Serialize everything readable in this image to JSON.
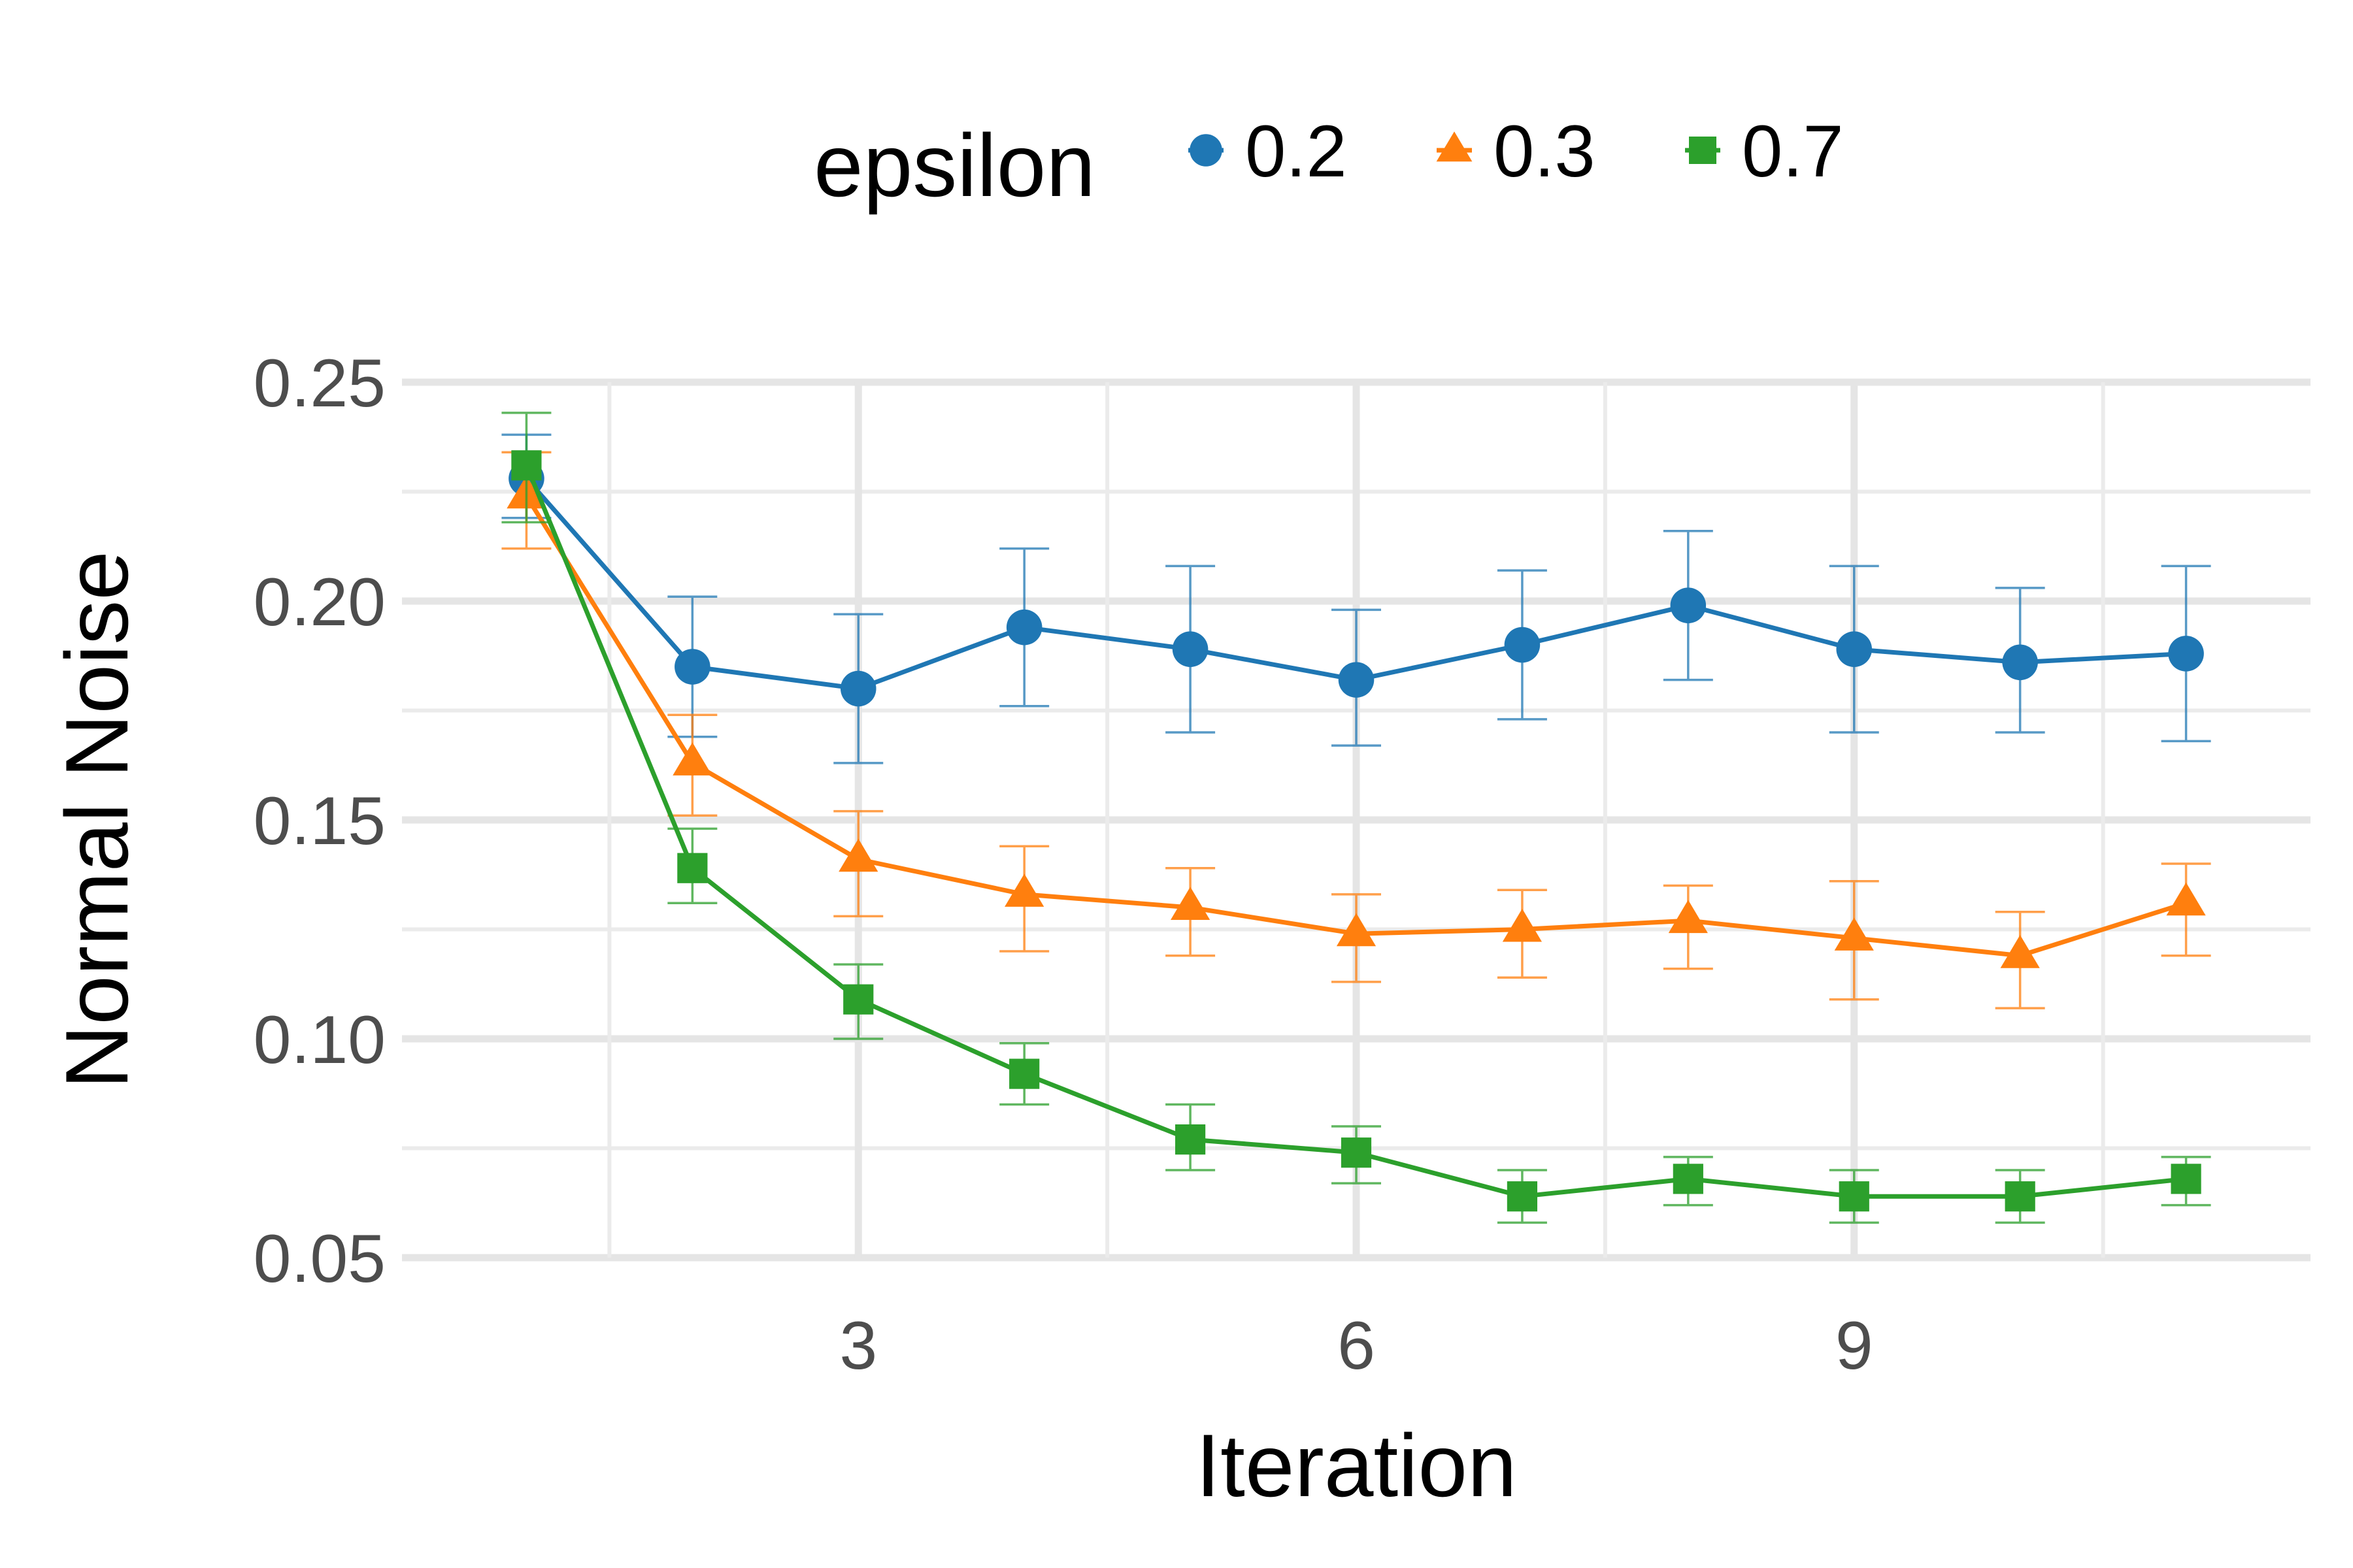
{
  "chart_data": {
    "type": "line",
    "xlabel": "Iteration",
    "ylabel": "Normal Noise",
    "xlim": [
      0.25,
      11.75
    ],
    "ylim": [
      0.05,
      0.25
    ],
    "xticks": [
      3,
      6,
      9
    ],
    "xtick_labels": [
      "3",
      "6",
      "9"
    ],
    "yticks": [
      0.05,
      0.1,
      0.15,
      0.2,
      0.25
    ],
    "ytick_labels": [
      "0.05",
      "0.10",
      "0.15",
      "0.20",
      "0.25"
    ],
    "grid": true,
    "legend": {
      "title": "epsilon",
      "position": "top"
    },
    "x": [
      1,
      2,
      3,
      4,
      5,
      6,
      7,
      8,
      9,
      10,
      11
    ],
    "series": [
      {
        "name": "0.2",
        "color": "#1f77b4",
        "marker": "circle",
        "values": [
          0.228,
          0.185,
          0.18,
          0.194,
          0.189,
          0.182,
          0.19,
          0.199,
          0.189,
          0.186,
          0.188
        ],
        "err_low": [
          0.219,
          0.169,
          0.163,
          0.176,
          0.17,
          0.167,
          0.173,
          0.182,
          0.17,
          0.17,
          0.168
        ],
        "err_high": [
          0.238,
          0.201,
          0.197,
          0.212,
          0.208,
          0.198,
          0.207,
          0.216,
          0.208,
          0.203,
          0.208
        ]
      },
      {
        "name": "0.3",
        "color": "#ff7f0e",
        "marker": "triangle",
        "values": [
          0.224,
          0.163,
          0.141,
          0.133,
          0.13,
          0.124,
          0.125,
          0.127,
          0.123,
          0.119,
          0.131
        ],
        "err_low": [
          0.212,
          0.151,
          0.128,
          0.12,
          0.119,
          0.113,
          0.114,
          0.116,
          0.109,
          0.107,
          0.119
        ],
        "err_high": [
          0.234,
          0.174,
          0.152,
          0.144,
          0.139,
          0.133,
          0.134,
          0.135,
          0.136,
          0.129,
          0.14
        ]
      },
      {
        "name": "0.7",
        "color": "#2ca02c",
        "marker": "square",
        "values": [
          0.231,
          0.139,
          0.109,
          0.092,
          0.077,
          0.074,
          0.064,
          0.068,
          0.064,
          0.064,
          0.068
        ],
        "err_low": [
          0.218,
          0.131,
          0.1,
          0.085,
          0.07,
          0.067,
          0.058,
          0.062,
          0.058,
          0.058,
          0.062
        ],
        "err_high": [
          0.243,
          0.148,
          0.117,
          0.099,
          0.085,
          0.08,
          0.07,
          0.073,
          0.07,
          0.07,
          0.073
        ]
      }
    ]
  }
}
